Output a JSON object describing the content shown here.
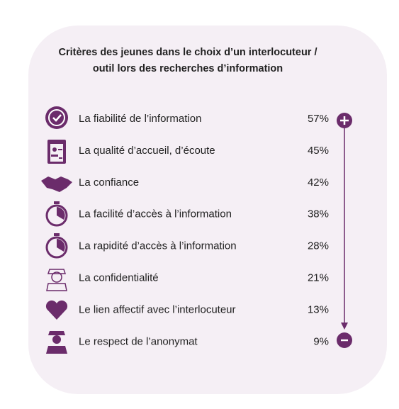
{
  "title": [
    "Critères des jeunes dans le choix d’un interlocuteur /",
    "outil lors des recherches d’information"
  ],
  "items": [
    {
      "label": "La fiabilité de l’information",
      "value": "57%"
    },
    {
      "label": "La qualité d’accueil, d’écoute",
      "value": "45%"
    },
    {
      "label": "La confiance",
      "value": "42%"
    },
    {
      "label": "La facilité d’accès à l’information",
      "value": "38%"
    },
    {
      "label": "La rapidité d’accès à l’information",
      "value": "28%"
    },
    {
      "label": "La confidentialité",
      "value": "21%"
    },
    {
      "label": "Le lien affectif avec l’interlocuteur",
      "value": "13%"
    },
    {
      "label": "Le respect de l’anonymat",
      "value": "9%"
    }
  ]
}
